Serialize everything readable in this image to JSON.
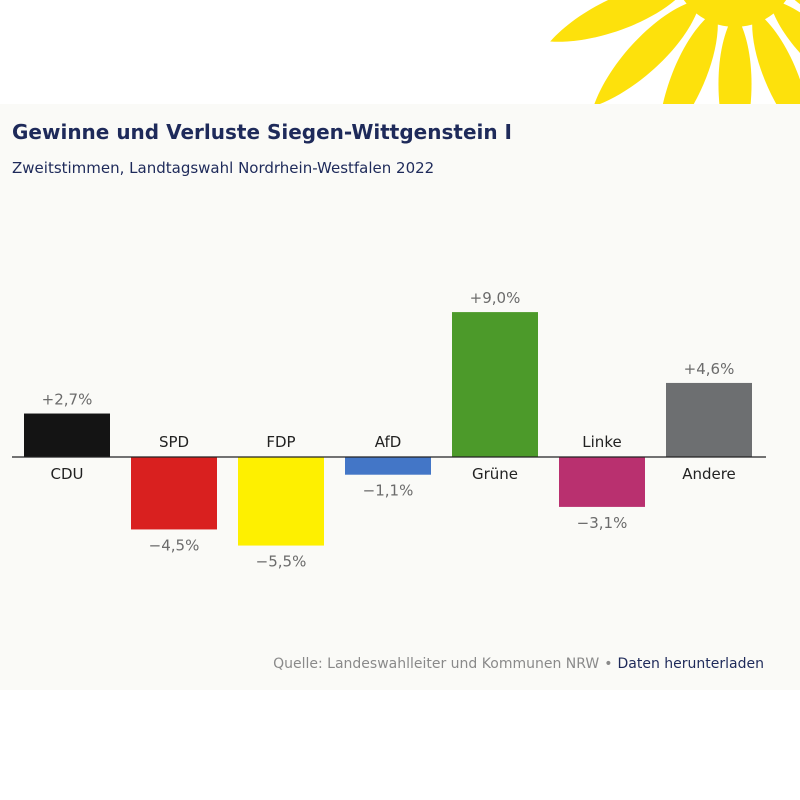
{
  "chart_data": {
    "type": "bar",
    "title": "Gewinne und Verluste Siegen-Wittgenstein I",
    "subtitle": "Zweitstimmen, Landtagswahl Nordrhein-Westfalen 2022",
    "categories": [
      "CDU",
      "SPD",
      "FDP",
      "AfD",
      "Grüne",
      "Linke",
      "Andere"
    ],
    "values": [
      2.7,
      -4.5,
      -5.5,
      -1.1,
      9.0,
      -3.1,
      4.6
    ],
    "value_labels": [
      "+2,7%",
      "−4,5%",
      "−5,5%",
      "−1,1%",
      "+9,0%",
      "−3,1%",
      "+4,6%"
    ],
    "colors": [
      "#141414",
      "#d9201f",
      "#fef000",
      "#4376c7",
      "#4c9a2a",
      "#b9306f",
      "#6d6f71"
    ],
    "ylim": [
      -5.5,
      9.0
    ],
    "grid": false,
    "legend": "none"
  },
  "footer": {
    "source": "Quelle: Landeswahlleiter und Kommunen NRW",
    "separator": "•",
    "download_label": "Daten herunterladen"
  },
  "colors": {
    "title": "#1e2a5a",
    "sunflower": "#fde10c",
    "background": "#fafaf7"
  }
}
